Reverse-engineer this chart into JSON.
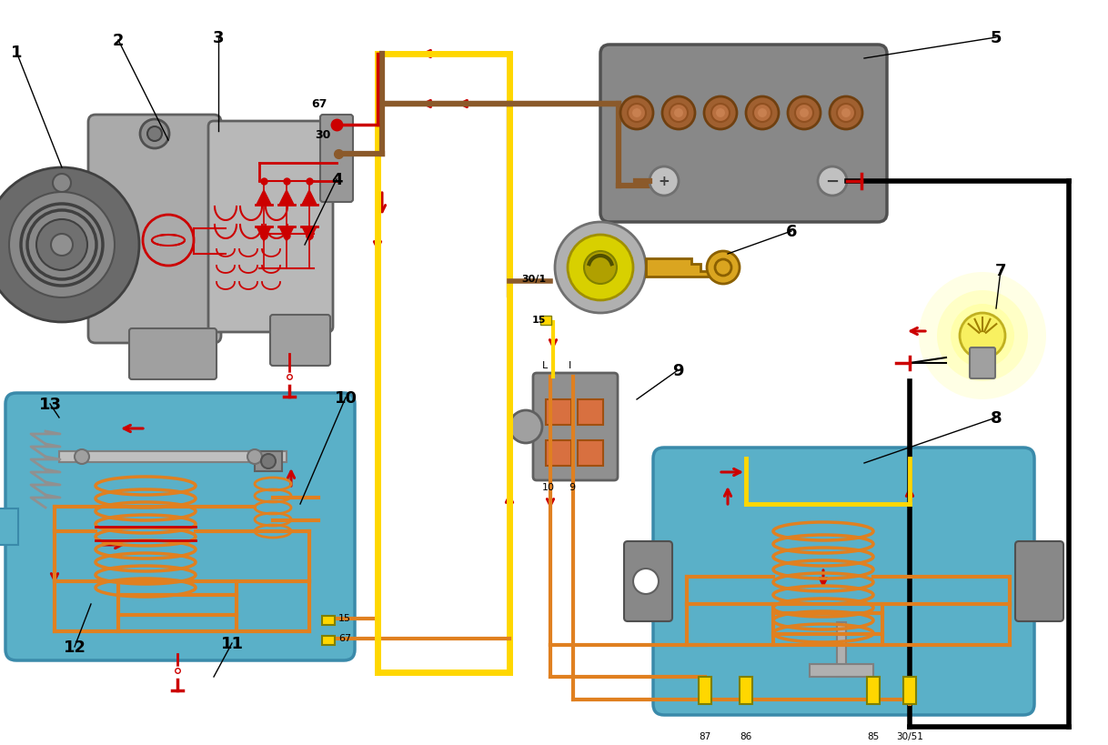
{
  "bg_color": "#ffffff",
  "RED": "#cc0000",
  "BROWN": "#8B5A2B",
  "YELLOW": "#FFD700",
  "ORANGE": "#E08020",
  "TEAL": "#5ab0c8",
  "GRAY": "#909090",
  "DGRAY": "#606060",
  "LGRAY": "#c8c8c8",
  "BLACK": "#000000",
  "GOLD": "#DAA520",
  "SILVER": "#b8b8b8"
}
